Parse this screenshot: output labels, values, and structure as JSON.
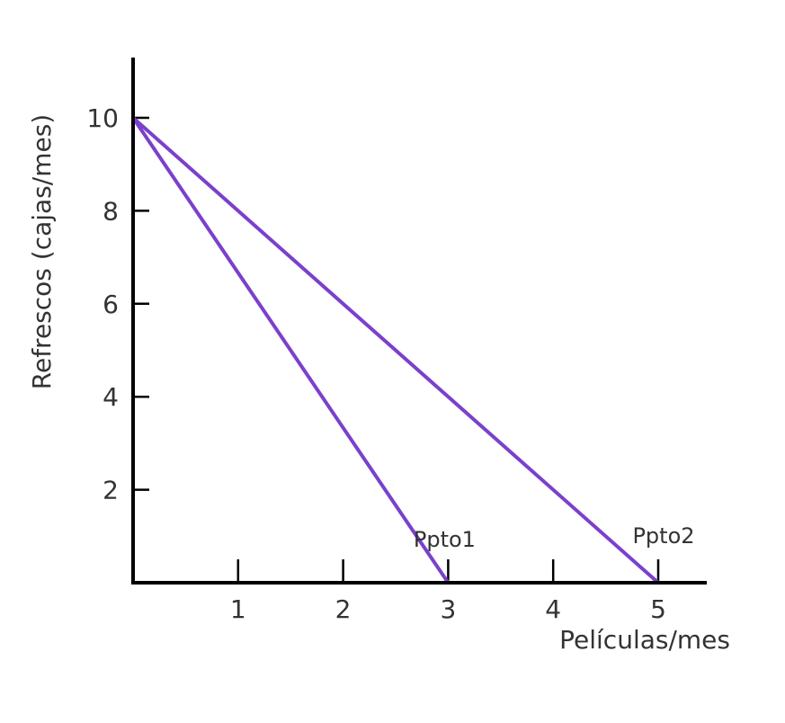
{
  "chart_data": {
    "type": "line",
    "xlabel": "Películas/mes",
    "ylabel": "Refrescos (cajas/mes)",
    "x_ticks": [
      "1",
      "2",
      "3",
      "4",
      "5"
    ],
    "y_ticks": [
      "2",
      "4",
      "6",
      "8",
      "10"
    ],
    "series": [
      {
        "label": "Ppto1",
        "points": [
          [
            0,
            10
          ],
          [
            3,
            0
          ]
        ]
      },
      {
        "label": "Ppto2",
        "points": [
          [
            0,
            10
          ],
          [
            5,
            0
          ]
        ]
      }
    ],
    "line_color": "#7b40cc",
    "grid": false
  }
}
